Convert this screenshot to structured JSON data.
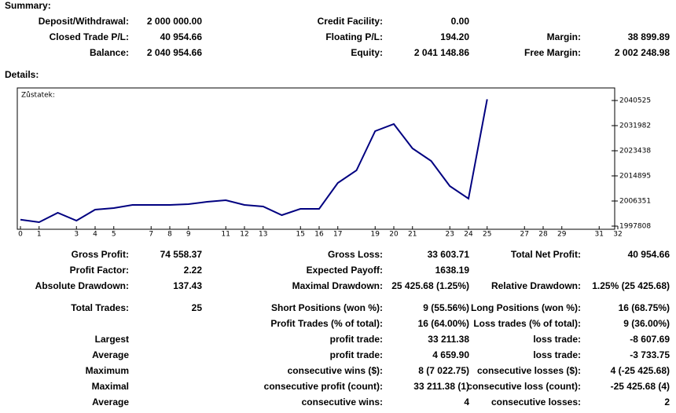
{
  "summary": {
    "title": "Summary:",
    "items": [
      {
        "label": "Deposit/Withdrawal:",
        "value": "2 000 000.00"
      },
      {
        "label": "Credit Facility:",
        "value": "0.00"
      },
      {
        "label": "Closed Trade P/L:",
        "value": "40 954.66"
      },
      {
        "label": "Floating P/L:",
        "value": "194.20"
      },
      {
        "label": "Margin:",
        "value": "38 899.89"
      },
      {
        "label": "Balance:",
        "value": "2 040 954.66"
      },
      {
        "label": "Equity:",
        "value": "2 041 148.86"
      },
      {
        "label": "Free Margin:",
        "value": "2 002 248.98"
      }
    ]
  },
  "details": {
    "title": "Details:",
    "stats": [
      {
        "label": "Gross Profit:",
        "value": "74 558.37"
      },
      {
        "label": "Gross Loss:",
        "value": "33 603.71"
      },
      {
        "label": "Total Net Profit:",
        "value": "40 954.66"
      },
      {
        "label": "Profit Factor:",
        "value": "2.22"
      },
      {
        "label": "Expected Payoff:",
        "value": "1638.19"
      },
      {
        "label": "Absolute Drawdown:",
        "value": "137.43"
      },
      {
        "label": "Maximal Drawdown:",
        "value": "25 425.68 (1.25%)"
      },
      {
        "label": "Relative Drawdown:",
        "value": "1.25% (25 425.68)"
      },
      {
        "label": "Total Trades:",
        "value": "25"
      },
      {
        "label": "Short Positions (won %):",
        "value": "9 (55.56%)"
      },
      {
        "label": "Long Positions (won %):",
        "value": "16 (68.75%)"
      },
      {
        "label": "Profit Trades (% of total):",
        "value": "16 (64.00%)"
      },
      {
        "label": "Loss trades (% of total):",
        "value": "9 (36.00%)"
      },
      {
        "label": "Largest"
      },
      {
        "label": "profit trade:",
        "value": "33 211.38"
      },
      {
        "label": "loss trade:",
        "value": "-8 607.69"
      },
      {
        "label": "Average"
      },
      {
        "label": "profit trade:",
        "value": "4 659.90"
      },
      {
        "label": "loss trade:",
        "value": "-3 733.75"
      },
      {
        "label": "Maximum"
      },
      {
        "label": "consecutive wins ($):",
        "value": "8 (7 022.75)"
      },
      {
        "label": "consecutive losses ($):",
        "value": "4 (-25 425.68)"
      },
      {
        "label": "Maximal"
      },
      {
        "label": "consecutive profit (count):",
        "value": "33 211.38 (1)"
      },
      {
        "label": "consecutive loss (count):",
        "value": "-25 425.68 (4)"
      },
      {
        "label": "Average"
      },
      {
        "label": "consecutive wins:",
        "value": "4"
      },
      {
        "label": "consecutive losses:",
        "value": "2"
      }
    ]
  },
  "chart_data": {
    "type": "line",
    "series": [
      {
        "name": "Zůstatek:",
        "color": "#000080",
        "values": [
          2000000,
          1999140,
          2002344,
          1999674,
          2003412,
          2003946,
          2005014,
          2005014,
          2005014,
          2005281,
          2006082,
          2006616,
          2005014,
          2004480,
          2001543,
          2003679,
          2003679,
          2012490,
          2016762,
          2030112,
          2032515,
          2024238,
          2019966,
          2011422,
          2007150,
          2040955
        ]
      }
    ],
    "x": [
      0,
      1,
      2,
      3,
      4,
      5,
      6,
      7,
      8,
      9,
      10,
      11,
      12,
      13,
      14,
      15,
      16,
      17,
      18,
      19,
      20,
      21,
      22,
      23,
      24,
      25
    ],
    "xlim": [
      0,
      32
    ],
    "xticks": [
      0,
      1,
      3,
      4,
      5,
      7,
      8,
      9,
      11,
      12,
      13,
      15,
      16,
      17,
      19,
      20,
      21,
      23,
      24,
      25,
      27,
      28,
      29,
      31,
      32
    ],
    "ylim": [
      1996470,
      2044530
    ],
    "yticks": [
      1997808,
      2006351,
      2014895,
      2023438,
      2031982,
      2040525
    ]
  }
}
